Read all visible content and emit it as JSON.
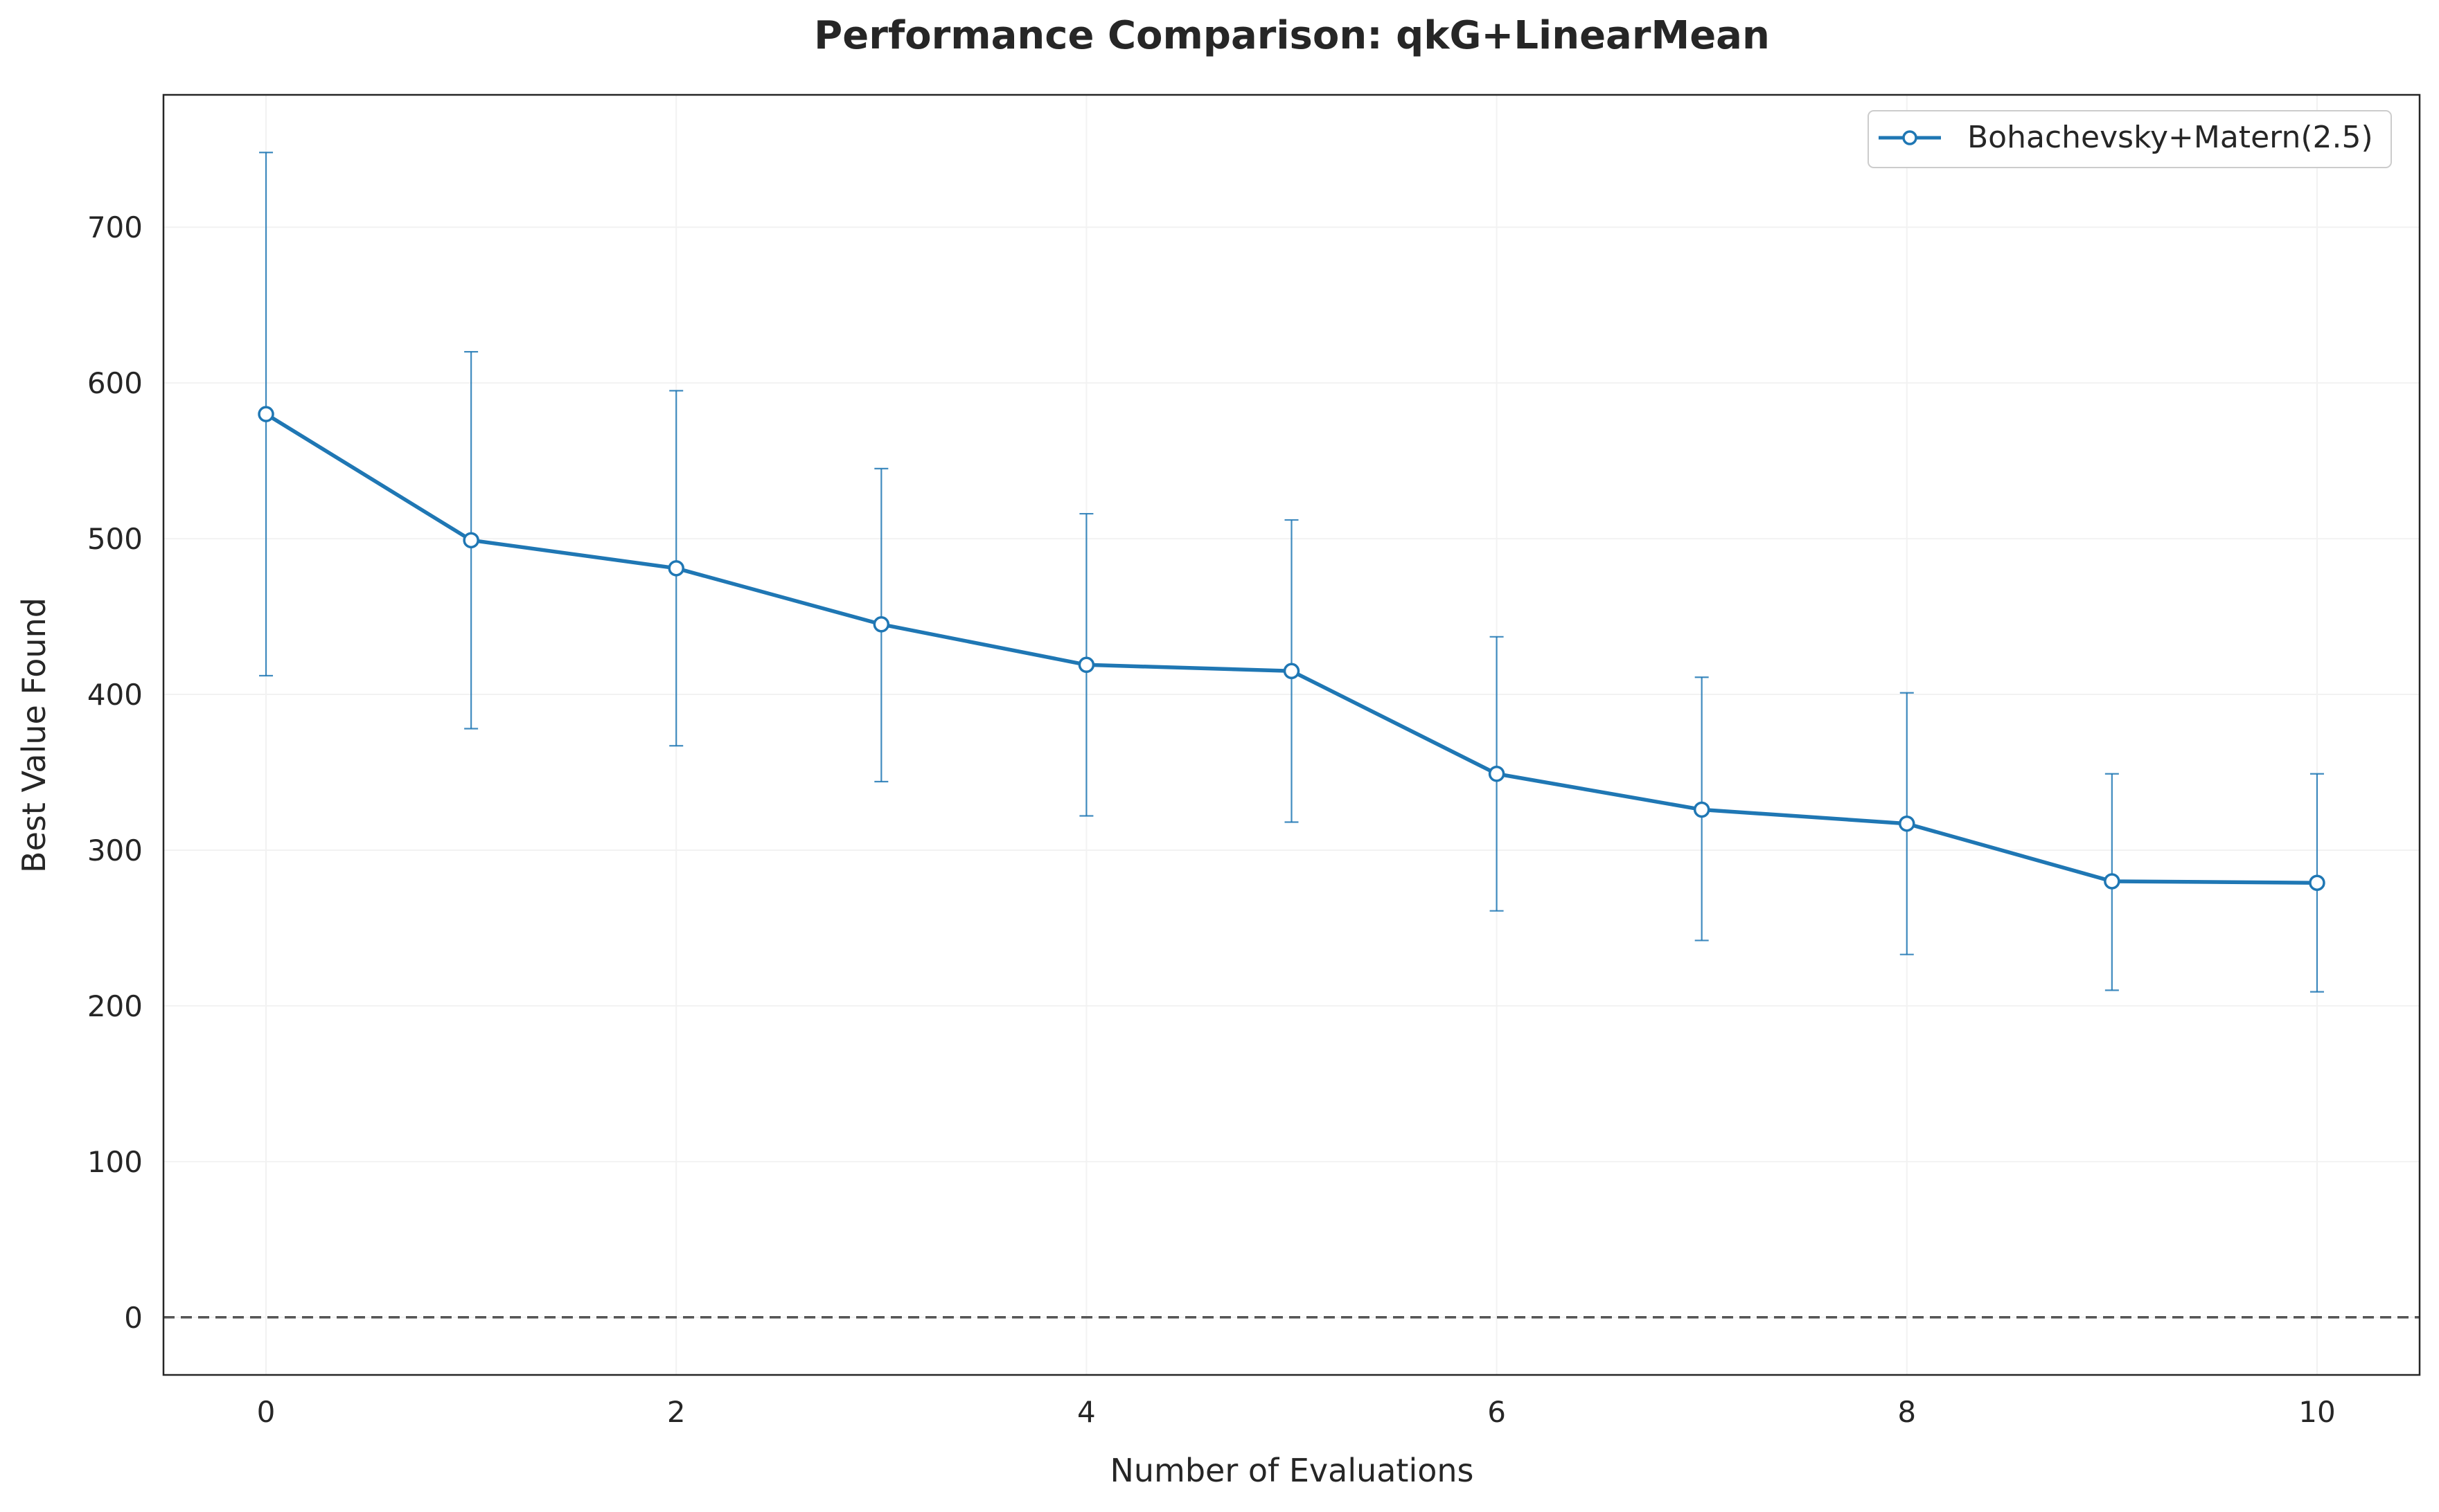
{
  "chart_data": {
    "type": "line",
    "title": "Performance Comparison: qkG+LinearMean",
    "xlabel": "Number of Evaluations",
    "ylabel": "Best Value Found",
    "x": [
      0,
      1,
      2,
      3,
      4,
      5,
      6,
      7,
      8,
      9,
      10
    ],
    "xlim": [
      -0.5,
      10.5
    ],
    "ylim": [
      -37,
      785
    ],
    "xticks": [
      0,
      2,
      4,
      6,
      8,
      10
    ],
    "yticks": [
      0,
      100,
      200,
      300,
      400,
      500,
      600,
      700
    ],
    "grid": true,
    "legend_position": "top-right",
    "reference_line": {
      "y": 0,
      "style": "dashed",
      "color": "#555555"
    },
    "series": [
      {
        "name": "Bohachevsky+Matern(2.5)",
        "color": "#1f77b4",
        "marker": "circle-open",
        "values": [
          580,
          499,
          481,
          445,
          419,
          415,
          349,
          326,
          317,
          280,
          279
        ],
        "err_low": [
          412,
          378,
          367,
          344,
          322,
          318,
          261,
          242,
          233,
          210,
          209
        ],
        "err_high": [
          748,
          620,
          595,
          545,
          516,
          512,
          437,
          411,
          401,
          349,
          349
        ]
      }
    ]
  }
}
